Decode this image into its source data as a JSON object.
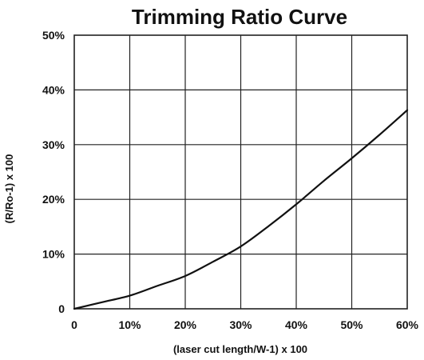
{
  "chart_data": {
    "type": "line",
    "title": "Trimming Ratio Curve",
    "xlabel": "(laser cut length/W-1) x 100",
    "ylabel": "(R/Ro-1) x 100",
    "xlim": [
      0,
      60
    ],
    "ylim": [
      0,
      50
    ],
    "grid": true,
    "x_ticks": [
      0,
      10,
      20,
      30,
      40,
      50,
      60
    ],
    "x_tick_labels": [
      "0",
      "10%",
      "20%",
      "30%",
      "40%",
      "50%",
      "60%"
    ],
    "y_ticks": [
      0,
      10,
      20,
      30,
      40,
      50
    ],
    "y_tick_labels": [
      "0",
      "10%",
      "20%",
      "30%",
      "40%",
      "50%"
    ],
    "series": [
      {
        "x": [
          0,
          5,
          10,
          15,
          20,
          25,
          30,
          35,
          40,
          45,
          50,
          55,
          60
        ],
        "y": [
          0,
          1.2,
          2.4,
          4.2,
          6.0,
          8.6,
          11.4,
          15.1,
          19.1,
          23.4,
          27.5,
          31.8,
          36.3
        ]
      }
    ],
    "line_color": "#111111",
    "grid_color": "#222222"
  }
}
